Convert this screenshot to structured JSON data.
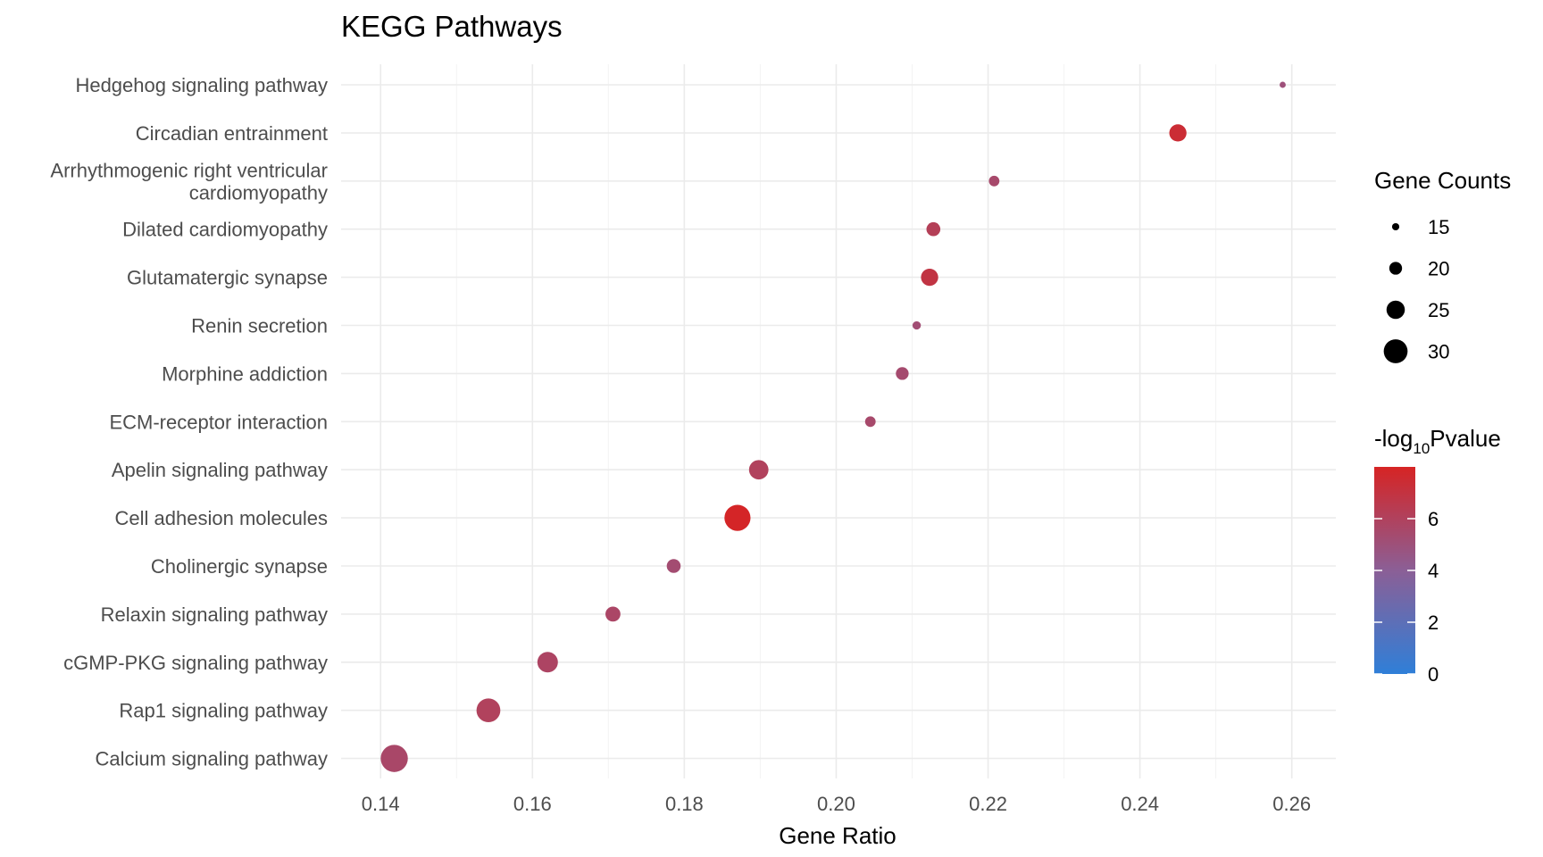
{
  "chart_data": {
    "type": "scatter",
    "title": "KEGG Pathways",
    "xlabel": "Gene Ratio",
    "ylabel": "",
    "xlim": [
      0.1348,
      0.2658
    ],
    "xticks": [
      0.14,
      0.16,
      0.18,
      0.2,
      0.22,
      0.24,
      0.26
    ],
    "xtick_labels": [
      "0.14",
      "0.16",
      "0.18",
      "0.20",
      "0.22",
      "0.24",
      "0.26"
    ],
    "grid": true,
    "categories": [
      "Hedgehog signaling pathway",
      "Circadian entrainment",
      "Arrhythmogenic right ventricular cardiomyopathy",
      "Dilated cardiomyopathy",
      "Glutamatergic synapse",
      "Renin secretion",
      "Morphine addiction",
      "ECM-receptor interaction",
      "Apelin signaling pathway",
      "Cell adhesion molecules",
      "Cholinergic synapse",
      "Relaxin signaling pathway",
      "cGMP-PKG signaling pathway",
      "Rap1 signaling pathway",
      "Calcium signaling pathway"
    ],
    "category_lines": [
      [
        "Hedgehog signaling pathway"
      ],
      [
        "Circadian entrainment"
      ],
      [
        "Arrhythmogenic right ventricular",
        "cardiomyopathy"
      ],
      [
        "Dilated cardiomyopathy"
      ],
      [
        "Glutamatergic synapse"
      ],
      [
        "Renin secretion"
      ],
      [
        "Morphine addiction"
      ],
      [
        "ECM-receptor interaction"
      ],
      [
        "Apelin signaling pathway"
      ],
      [
        "Cell adhesion molecules"
      ],
      [
        "Cholinergic synapse"
      ],
      [
        "Relaxin signaling pathway"
      ],
      [
        "cGMP-PKG signaling pathway"
      ],
      [
        "Rap1 signaling pathway"
      ],
      [
        "Calcium signaling pathway"
      ]
    ],
    "points": [
      {
        "pathway": "Hedgehog signaling pathway",
        "gene_ratio": 0.2588,
        "count": 14,
        "neg_log10_p": 5.0
      },
      {
        "pathway": "Circadian entrainment",
        "gene_ratio": 0.245,
        "count": 24,
        "neg_log10_p": 7.4
      },
      {
        "pathway": "Arrhythmogenic right ventricular cardiomyopathy",
        "gene_ratio": 0.2208,
        "count": 18,
        "neg_log10_p": 5.5
      },
      {
        "pathway": "Dilated cardiomyopathy",
        "gene_ratio": 0.2128,
        "count": 21,
        "neg_log10_p": 6.2
      },
      {
        "pathway": "Glutamatergic synapse",
        "gene_ratio": 0.2123,
        "count": 24,
        "neg_log10_p": 6.9
      },
      {
        "pathway": "Renin secretion",
        "gene_ratio": 0.2106,
        "count": 16,
        "neg_log10_p": 5.2
      },
      {
        "pathway": "Morphine addiction",
        "gene_ratio": 0.2087,
        "count": 20,
        "neg_log10_p": 5.4
      },
      {
        "pathway": "ECM-receptor interaction",
        "gene_ratio": 0.2045,
        "count": 18,
        "neg_log10_p": 5.5
      },
      {
        "pathway": "Apelin signaling pathway",
        "gene_ratio": 0.1898,
        "count": 26,
        "neg_log10_p": 6.0
      },
      {
        "pathway": "Cell adhesion molecules",
        "gene_ratio": 0.187,
        "count": 32,
        "neg_log10_p": 7.9
      },
      {
        "pathway": "Cholinergic synapse",
        "gene_ratio": 0.1786,
        "count": 21,
        "neg_log10_p": 5.3
      },
      {
        "pathway": "Relaxin signaling pathway",
        "gene_ratio": 0.1706,
        "count": 22,
        "neg_log10_p": 5.7
      },
      {
        "pathway": "cGMP-PKG signaling pathway",
        "gene_ratio": 0.162,
        "count": 27,
        "neg_log10_p": 5.8
      },
      {
        "pathway": "Rap1 signaling pathway",
        "gene_ratio": 0.1542,
        "count": 30,
        "neg_log10_p": 6.0
      },
      {
        "pathway": "Calcium signaling pathway",
        "gene_ratio": 0.1418,
        "count": 33,
        "neg_log10_p": 5.6
      }
    ],
    "size_legend": {
      "title": "Gene Counts",
      "values": [
        15,
        20,
        25,
        30
      ],
      "labels": [
        "15",
        "20",
        "25",
        "30"
      ]
    },
    "color_legend": {
      "title_prefix": "-log",
      "title_subscript": "10",
      "title_suffix": "Pvalue",
      "range": [
        0,
        8.0
      ],
      "ticks": [
        0,
        2,
        4,
        6
      ],
      "tick_labels": [
        "0",
        "2",
        "4",
        "6"
      ],
      "low_color": "#2f7fd8",
      "mid_color": "#8b5f96",
      "high_color": "#d62424"
    }
  }
}
